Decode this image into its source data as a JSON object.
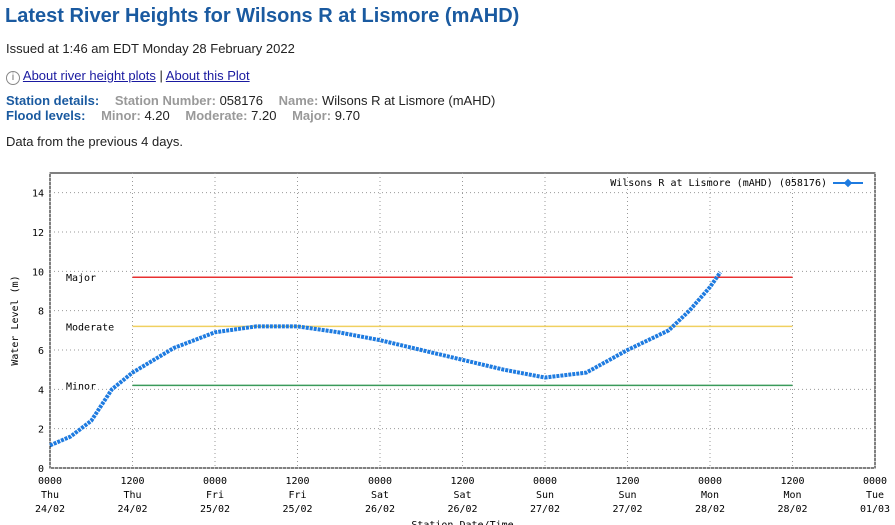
{
  "header": {
    "title": "Latest River Heights for Wilsons R at Lismore (mAHD)",
    "issued": "Issued at 1:46 am EDT Monday 28 February 2022",
    "links": [
      "About river height plots",
      "About this Plot"
    ],
    "link_separator": "|",
    "station_details": {
      "label": "Station details:",
      "number_label": "Station Number:",
      "number": "058176",
      "name_label": "Name:",
      "name": "Wilsons R at Lismore (mAHD)"
    },
    "flood_levels": {
      "label": "Flood levels:",
      "levels": [
        {
          "label": "Minor:",
          "value": "4.20"
        },
        {
          "label": "Moderate:",
          "value": "7.20"
        },
        {
          "label": "Major:",
          "value": "9.70"
        }
      ]
    },
    "note": "Data from the previous 4 days."
  },
  "chart_data": {
    "type": "line",
    "xlabel": "Station Date/Time",
    "ylabel": "Water Level (m)",
    "xlim": [
      0,
      120
    ],
    "ylim": [
      0,
      15
    ],
    "xticks": [
      {
        "value": 0,
        "label": "0000",
        "day": "Thu",
        "date": "24/02"
      },
      {
        "value": 12,
        "label": "1200",
        "day": "Thu",
        "date": "24/02"
      },
      {
        "value": 24,
        "label": "0000",
        "day": "Fri",
        "date": "25/02"
      },
      {
        "value": 36,
        "label": "1200",
        "day": "Fri",
        "date": "25/02"
      },
      {
        "value": 48,
        "label": "0000",
        "day": "Sat",
        "date": "26/02"
      },
      {
        "value": 60,
        "label": "1200",
        "day": "Sat",
        "date": "26/02"
      },
      {
        "value": 72,
        "label": "0000",
        "day": "Sun",
        "date": "27/02"
      },
      {
        "value": 84,
        "label": "1200",
        "day": "Sun",
        "date": "27/02"
      },
      {
        "value": 96,
        "label": "0000",
        "day": "Mon",
        "date": "28/02"
      },
      {
        "value": 108,
        "label": "1200",
        "day": "Mon",
        "date": "28/02"
      },
      {
        "value": 120,
        "label": "0000",
        "day": "Tue",
        "date": "01/03"
      }
    ],
    "yticks": [
      0,
      2,
      4,
      6,
      8,
      10,
      12,
      14
    ],
    "grid": true,
    "series": [
      {
        "name": "Wilsons R at Lismore (mAHD) (058176)",
        "color": "#1e7be0",
        "x": [
          0,
          3,
          6,
          9,
          12,
          18,
          24,
          30,
          36,
          42,
          48,
          54,
          60,
          66,
          72,
          78,
          84,
          90,
          93,
          96,
          97.5
        ],
        "values": [
          1.15,
          1.6,
          2.4,
          4.0,
          4.85,
          6.1,
          6.9,
          7.2,
          7.2,
          6.9,
          6.5,
          6.0,
          5.5,
          5.0,
          4.6,
          4.85,
          6.0,
          7.0,
          8.0,
          9.2,
          9.95
        ]
      }
    ],
    "reference_lines": [
      {
        "name": "Minor",
        "value": 4.2,
        "color": "#3a9a5a",
        "start": 12,
        "end": 108
      },
      {
        "name": "Moderate",
        "value": 7.2,
        "color": "#f0d060",
        "start": 12,
        "end": 108
      },
      {
        "name": "Major",
        "value": 9.7,
        "color": "#e83030",
        "start": 12,
        "end": 108
      }
    ]
  }
}
